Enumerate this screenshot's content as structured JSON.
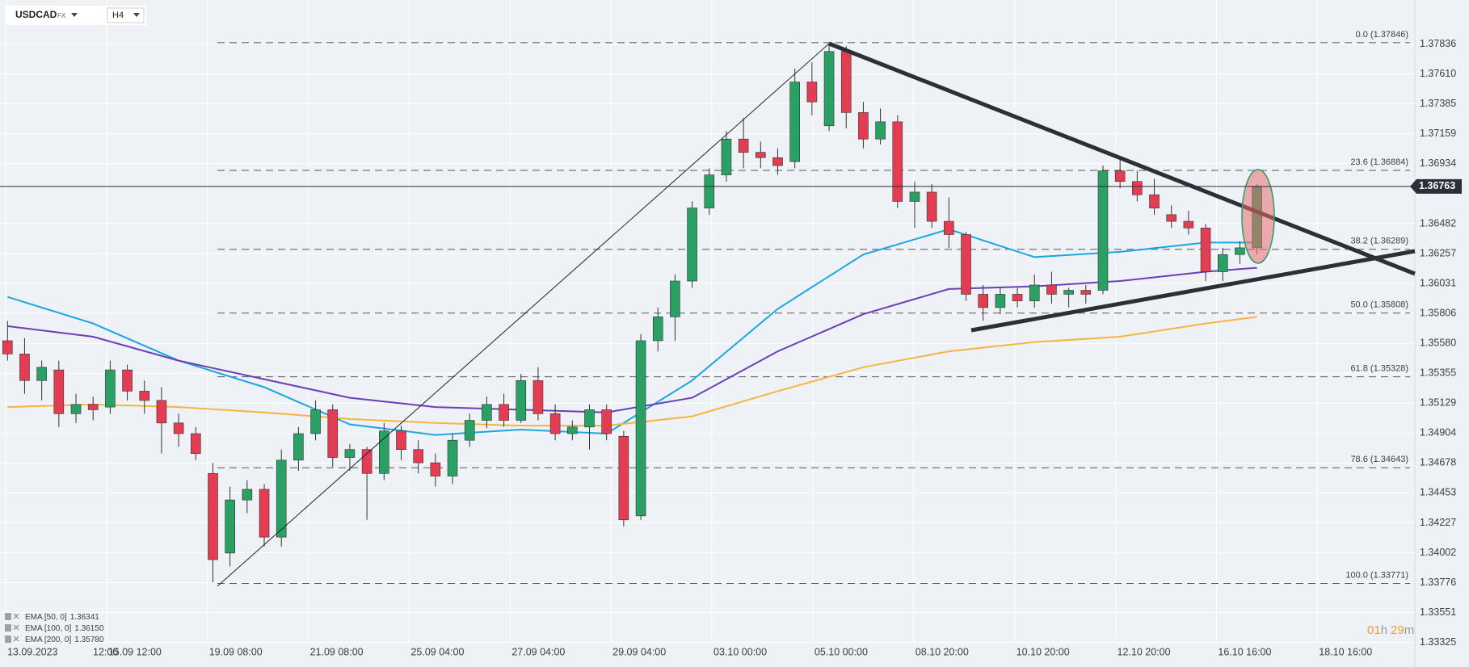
{
  "chart_data": {
    "type": "candlestick",
    "symbol": "USDCAD",
    "market": "FX",
    "timeframe": "H4",
    "ylim": [
      1.33141,
      1.38168
    ],
    "yticks": [
      1.37836,
      {
        "value": 1.3761,
        "label": "1.37610"
      },
      1.37385,
      1.37159,
      1.36934,
      1.36482,
      1.36257,
      1.36031,
      1.35806,
      {
        "value": 1.3558,
        "label": "1.35580"
      },
      1.35355,
      1.35129,
      1.34904,
      1.34678,
      1.34453,
      1.34227,
      1.34002,
      1.33776,
      1.33551,
      1.33325
    ],
    "categories": [
      "13.09.2023 12:00",
      "15.09 12:00",
      "19.09 08:00",
      "21.09 08:00",
      "25.09 04:00",
      "27.09 04:00",
      "29.09 04:00",
      "03.10 00:00",
      "05.10 00:00",
      "08.10 20:00",
      "10.10 20:00",
      "12.10 20:00",
      "16.10 16:00",
      "18.10 16:00"
    ],
    "up_color": "#2aa065",
    "down_color": "#e23d52",
    "candles": [
      [
        1.356,
        1.3575,
        1.3545,
        1.355
      ],
      [
        1.355,
        1.3562,
        1.352,
        1.353
      ],
      [
        1.353,
        1.3545,
        1.3515,
        1.354
      ],
      [
        1.3538,
        1.3545,
        1.3495,
        1.3505
      ],
      [
        1.3505,
        1.352,
        1.3498,
        1.3512
      ],
      [
        1.3512,
        1.3518,
        1.35,
        1.3508
      ],
      [
        1.351,
        1.3545,
        1.3505,
        1.3538
      ],
      [
        1.3538,
        1.3542,
        1.3515,
        1.3522
      ],
      [
        1.3522,
        1.353,
        1.3505,
        1.3515
      ],
      [
        1.3515,
        1.3525,
        1.3475,
        1.3498
      ],
      [
        1.3498,
        1.3505,
        1.348,
        1.349
      ],
      [
        1.349,
        1.3495,
        1.347,
        1.3475
      ],
      [
        1.346,
        1.3468,
        1.3378,
        1.3395
      ],
      [
        1.34,
        1.345,
        1.339,
        1.344
      ],
      [
        1.344,
        1.3455,
        1.343,
        1.3448
      ],
      [
        1.3448,
        1.3452,
        1.3405,
        1.3412
      ],
      [
        1.3412,
        1.3478,
        1.3405,
        1.347
      ],
      [
        1.347,
        1.3495,
        1.3462,
        1.349
      ],
      [
        1.349,
        1.3515,
        1.3485,
        1.3508
      ],
      [
        1.3508,
        1.3512,
        1.3465,
        1.3472
      ],
      [
        1.3472,
        1.3482,
        1.3462,
        1.3478
      ],
      [
        1.3478,
        1.348,
        1.3425,
        1.346
      ],
      [
        1.346,
        1.3498,
        1.3455,
        1.3492
      ],
      [
        1.3492,
        1.3496,
        1.347,
        1.3478
      ],
      [
        1.3478,
        1.3485,
        1.346,
        1.3468
      ],
      [
        1.3468,
        1.3475,
        1.345,
        1.3458
      ],
      [
        1.3458,
        1.349,
        1.3452,
        1.3485
      ],
      [
        1.3485,
        1.3505,
        1.348,
        1.35
      ],
      [
        1.35,
        1.3518,
        1.3494,
        1.3512
      ],
      [
        1.3512,
        1.352,
        1.3495,
        1.35
      ],
      [
        1.35,
        1.3535,
        1.3498,
        1.353
      ],
      [
        1.353,
        1.354,
        1.35,
        1.3505
      ],
      [
        1.3505,
        1.3512,
        1.3485,
        1.349
      ],
      [
        1.349,
        1.35,
        1.3485,
        1.3495
      ],
      [
        1.3495,
        1.3512,
        1.3478,
        1.3508
      ],
      [
        1.3508,
        1.3512,
        1.3485,
        1.349
      ],
      [
        1.3488,
        1.3492,
        1.342,
        1.3425
      ],
      [
        1.3428,
        1.3565,
        1.3425,
        1.356
      ],
      [
        1.356,
        1.3585,
        1.3552,
        1.3578
      ],
      [
        1.3578,
        1.361,
        1.356,
        1.3605
      ],
      [
        1.3605,
        1.3665,
        1.36,
        1.366
      ],
      [
        1.366,
        1.369,
        1.3655,
        1.3685
      ],
      [
        1.3685,
        1.3718,
        1.368,
        1.3712
      ],
      [
        1.3712,
        1.3728,
        1.369,
        1.3702
      ],
      [
        1.3702,
        1.371,
        1.369,
        1.3698
      ],
      [
        1.3698,
        1.3705,
        1.3685,
        1.3692
      ],
      [
        1.3695,
        1.3765,
        1.369,
        1.3755
      ],
      [
        1.3755,
        1.377,
        1.373,
        1.374
      ],
      [
        1.3722,
        1.3784,
        1.3718,
        1.3778
      ],
      [
        1.3778,
        1.3782,
        1.372,
        1.3732
      ],
      [
        1.3732,
        1.374,
        1.3705,
        1.3712
      ],
      [
        1.3712,
        1.3735,
        1.3708,
        1.3725
      ],
      [
        1.3725,
        1.373,
        1.366,
        1.3665
      ],
      [
        1.3665,
        1.368,
        1.3645,
        1.3672
      ],
      [
        1.3672,
        1.3678,
        1.3645,
        1.365
      ],
      [
        1.365,
        1.3668,
        1.363,
        1.364
      ],
      [
        1.364,
        1.3642,
        1.359,
        1.3595
      ],
      [
        1.3595,
        1.3602,
        1.3575,
        1.3585
      ],
      [
        1.3585,
        1.36,
        1.358,
        1.3595
      ],
      [
        1.3595,
        1.36,
        1.3585,
        1.359
      ],
      [
        1.359,
        1.361,
        1.3585,
        1.3602
      ],
      [
        1.3602,
        1.3612,
        1.3588,
        1.3595
      ],
      [
        1.3595,
        1.36,
        1.3585,
        1.3598
      ],
      [
        1.3598,
        1.3602,
        1.3588,
        1.3595
      ],
      [
        1.3598,
        1.3692,
        1.3595,
        1.3688
      ],
      [
        1.3688,
        1.3696,
        1.3675,
        1.368
      ],
      [
        1.368,
        1.3688,
        1.3665,
        1.367
      ],
      [
        1.367,
        1.3682,
        1.3655,
        1.366
      ],
      [
        1.3655,
        1.3662,
        1.3645,
        1.365
      ],
      [
        1.365,
        1.3658,
        1.364,
        1.3645
      ],
      [
        1.3645,
        1.3648,
        1.3605,
        1.3612
      ],
      [
        1.3612,
        1.363,
        1.3605,
        1.3625
      ],
      [
        1.3625,
        1.3635,
        1.3618,
        1.363
      ],
      [
        1.363,
        1.3678,
        1.3625,
        1.3676
      ]
    ],
    "series": [
      {
        "name": "EMA [50, 0]",
        "legend_value": "1.36341",
        "color": "#1ba6e2",
        "x": [
          0,
          5,
          10,
          15,
          20,
          25,
          30,
          35,
          40,
          45,
          50,
          55,
          60,
          65,
          70,
          73
        ],
        "values": [
          1.3593,
          1.3573,
          1.3545,
          1.3525,
          1.3497,
          1.3489,
          1.3493,
          1.349,
          1.353,
          1.3584,
          1.3625,
          1.3644,
          1.3623,
          1.3627,
          1.3634,
          1.3634
        ]
      },
      {
        "name": "EMA [100, 0]",
        "legend_value": "1.36150",
        "color": "#6b3fb8",
        "x": [
          0,
          5,
          10,
          15,
          20,
          25,
          30,
          35,
          40,
          45,
          50,
          55,
          60,
          65,
          70,
          73
        ],
        "values": [
          1.3571,
          1.3563,
          1.3545,
          1.3531,
          1.3517,
          1.351,
          1.3508,
          1.3506,
          1.3517,
          1.3552,
          1.358,
          1.3599,
          1.3601,
          1.3605,
          1.3612,
          1.3615
        ]
      },
      {
        "name": "EMA [200, 0]",
        "legend_value": "1.35780",
        "color": "#f6b53f",
        "x": [
          0,
          5,
          10,
          15,
          20,
          25,
          30,
          35,
          40,
          45,
          50,
          55,
          60,
          65,
          70,
          73
        ],
        "values": [
          1.351,
          1.3512,
          1.351,
          1.3506,
          1.3501,
          1.3498,
          1.3496,
          1.3496,
          1.3503,
          1.3522,
          1.354,
          1.3552,
          1.3559,
          1.3563,
          1.3573,
          1.3578
        ]
      }
    ],
    "fib_levels": [
      {
        "label": "0.0 (1.37846)",
        "value": 1.37846
      },
      {
        "label": "23.6 (1.36884)",
        "value": 1.36884
      },
      {
        "label": "38.2 (1.36289)",
        "value": 1.36289
      },
      {
        "label": "50.0 (1.35808)",
        "value": 1.35808
      },
      {
        "label": "61.8 (1.35328)",
        "value": 1.35328
      },
      {
        "label": "78.6 (1.34643)",
        "value": 1.34643
      },
      {
        "label": "100.0 (1.33771)",
        "value": 1.33771
      }
    ],
    "current_price": {
      "value": 1.36763,
      "label": "1.36763"
    },
    "countdown": [
      "01",
      "h",
      "29",
      "m"
    ]
  }
}
